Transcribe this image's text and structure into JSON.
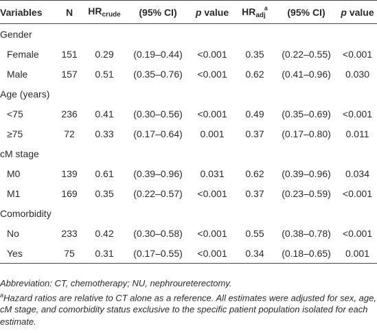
{
  "table": {
    "header": [
      {
        "text": "Variables"
      },
      {
        "text": "N"
      },
      {
        "text": "HR",
        "sub": "crude"
      },
      {
        "text": "(95% CI)"
      },
      {
        "italic": "p",
        "text": "value"
      },
      {
        "text": "HR",
        "sub": "adj",
        "sup": "a"
      },
      {
        "text": "(95% CI)"
      },
      {
        "italic": "p",
        "text": "value"
      }
    ],
    "groups": [
      {
        "label": "Gender",
        "rows": [
          [
            "Female",
            "151",
            "0.29",
            "(0.19–0.44)",
            "<0.001",
            "0.35",
            "(0.22–0.55)",
            "<0.001"
          ],
          [
            "Male",
            "157",
            "0.51",
            "(0.35–0.76)",
            "<0.001",
            "0.62",
            "(0.41–0.96)",
            "0.030"
          ]
        ]
      },
      {
        "label": "Age (years)",
        "rows": [
          [
            "<75",
            "236",
            "0.41",
            "(0.30–0.56)",
            "<0.001",
            "0.49",
            "(0.35–0.69)",
            "<0.001"
          ],
          [
            "≥75",
            "72",
            "0.33",
            "(0.17–0.64)",
            "0.001",
            "0.37",
            "(0.17–0.80)",
            "0.011"
          ]
        ]
      },
      {
        "label": "cM stage",
        "rows": [
          [
            "M0",
            "139",
            "0.61",
            "(0.39–0.96)",
            "0.031",
            "0.62",
            "(0.39–0.96)",
            "0.034"
          ],
          [
            "M1",
            "169",
            "0.35",
            "(0.22–0.57)",
            "<0.001",
            "0.37",
            "(0.23–0.59)",
            "<0.001"
          ]
        ]
      },
      {
        "label": "Comorbidity",
        "rows": [
          [
            "No",
            "233",
            "0.42",
            "(0.30–0.58)",
            "<0.001",
            "0.55",
            "(0.38–0.78)",
            "<0.001"
          ],
          [
            "Yes",
            "75",
            "0.31",
            "(0.17–0.55)",
            "<0.001",
            "0.34",
            "(0.18–0.65)",
            "0.001"
          ]
        ]
      }
    ]
  },
  "footnotes": [
    {
      "text": "Abbreviation: CT, chemotherapy; NU, nephroureterectomy."
    },
    {
      "sup": "a",
      "text": "Hazard ratios are relative to CT alone as a reference. All estimates were adjusted for sex, age, cM stage, and comorbidity status exclusive to the specific patient population isolated for each estimate."
    }
  ]
}
